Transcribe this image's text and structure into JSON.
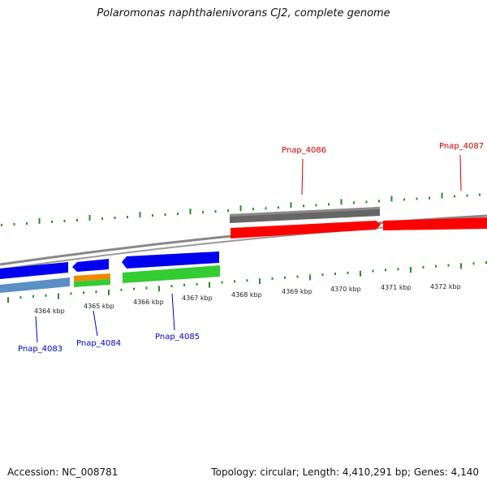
{
  "title": "Polaromonas naphthalenivorans CJ2, complete genome",
  "footer": {
    "accession": "Accession: NC_008781",
    "stats": "Topology: circular; Length: 4,410,291 bp; Genes: 4,140"
  },
  "axis": {
    "unit": "kbp",
    "tick_labels": [
      "4364 kbp",
      "4365 kbp",
      "4366 kbp",
      "4367 kbp",
      "4368 kbp",
      "4369 kbp",
      "4370 kbp",
      "4371 kbp",
      "4372 kbp"
    ]
  },
  "genes": [
    {
      "label": "Pnap_4083",
      "strand": "-",
      "color": "#0000cc"
    },
    {
      "label": "Pnap_4084",
      "strand": "-",
      "color": "#0000cc"
    },
    {
      "label": "Pnap_4085",
      "strand": "-",
      "color": "#0000cc"
    },
    {
      "label": "Pnap_4086",
      "strand": "+",
      "color": "#cc0000"
    },
    {
      "label": "Pnap_4087",
      "strand": "+",
      "color": "#cc0000"
    }
  ],
  "colors": {
    "forward_cds": "#ff0000",
    "reverse_cds": "#0000ee",
    "gray_track": "#666666",
    "orange_track": "#f08a00",
    "green_track": "#33cc33",
    "steel_track": "#5b8fc7",
    "tick_green": "#2a8a2a",
    "backbone": "#888888"
  }
}
